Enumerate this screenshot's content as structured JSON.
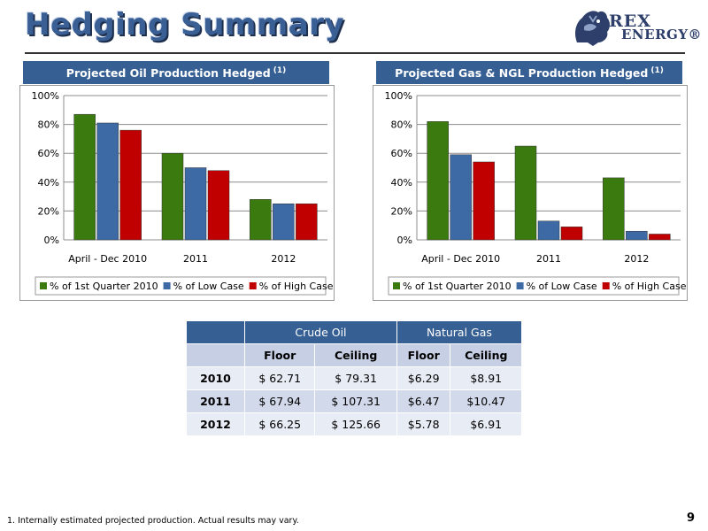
{
  "header": {
    "title": "Hedging Summary"
  },
  "logo": {
    "line1": "REX",
    "line2": "ENERGY®",
    "icon": "rex-lion-icon"
  },
  "colors": {
    "series": [
      "#3a7a0f",
      "#3d6aa5",
      "#c00000"
    ],
    "header_fill": "#365f94"
  },
  "oil_chart": {
    "title": "Projected Oil Production Hedged",
    "superscript": "(1)"
  },
  "gas_chart": {
    "title": "Projected Gas & NGL Production Hedged",
    "superscript": "(1)"
  },
  "chart_data": [
    {
      "type": "bar",
      "title": "Projected Oil Production Hedged (1)",
      "categories": [
        "April - Dec 2010",
        "2011",
        "2012"
      ],
      "series": [
        {
          "name": "% of 1st Quarter 2010",
          "values": [
            87,
            60,
            28
          ]
        },
        {
          "name": "% of Low Case",
          "values": [
            81,
            50,
            25
          ]
        },
        {
          "name": "% of High Case",
          "values": [
            76,
            48,
            25
          ]
        }
      ],
      "ylim": [
        0,
        100
      ],
      "yticks": [
        "0%",
        "20%",
        "40%",
        "60%",
        "80%",
        "100%"
      ],
      "grid": true,
      "legend": "bottom"
    },
    {
      "type": "bar",
      "title": "Projected Gas & NGL Production Hedged (1)",
      "categories": [
        "April - Dec 2010",
        "2011",
        "2012"
      ],
      "series": [
        {
          "name": "% of 1st Quarter 2010",
          "values": [
            82,
            65,
            43
          ]
        },
        {
          "name": "% of Low Case",
          "values": [
            59,
            13,
            6
          ]
        },
        {
          "name": "% of High Case",
          "values": [
            54,
            9,
            4
          ]
        }
      ],
      "ylim": [
        0,
        100
      ],
      "yticks": [
        "0%",
        "20%",
        "40%",
        "60%",
        "80%",
        "100%"
      ],
      "grid": true,
      "legend": "bottom"
    }
  ],
  "table": {
    "group_headers": [
      "Crude Oil",
      "Natural Gas"
    ],
    "sub_headers": [
      "Floor",
      "Ceiling",
      "Floor",
      "Ceiling"
    ],
    "rows": [
      {
        "year": "2010",
        "cells": [
          "$ 62.71",
          "$ 79.31",
          "$6.29",
          "$8.91"
        ]
      },
      {
        "year": "2011",
        "cells": [
          "$ 67.94",
          "$ 107.31",
          "$6.47",
          "$10.47"
        ]
      },
      {
        "year": "2012",
        "cells": [
          "$ 66.25",
          "$ 125.66",
          "$5.78",
          "$6.91"
        ]
      }
    ]
  },
  "footnote": "1. Internally estimated projected production. Actual results may vary.",
  "page_number": "9"
}
